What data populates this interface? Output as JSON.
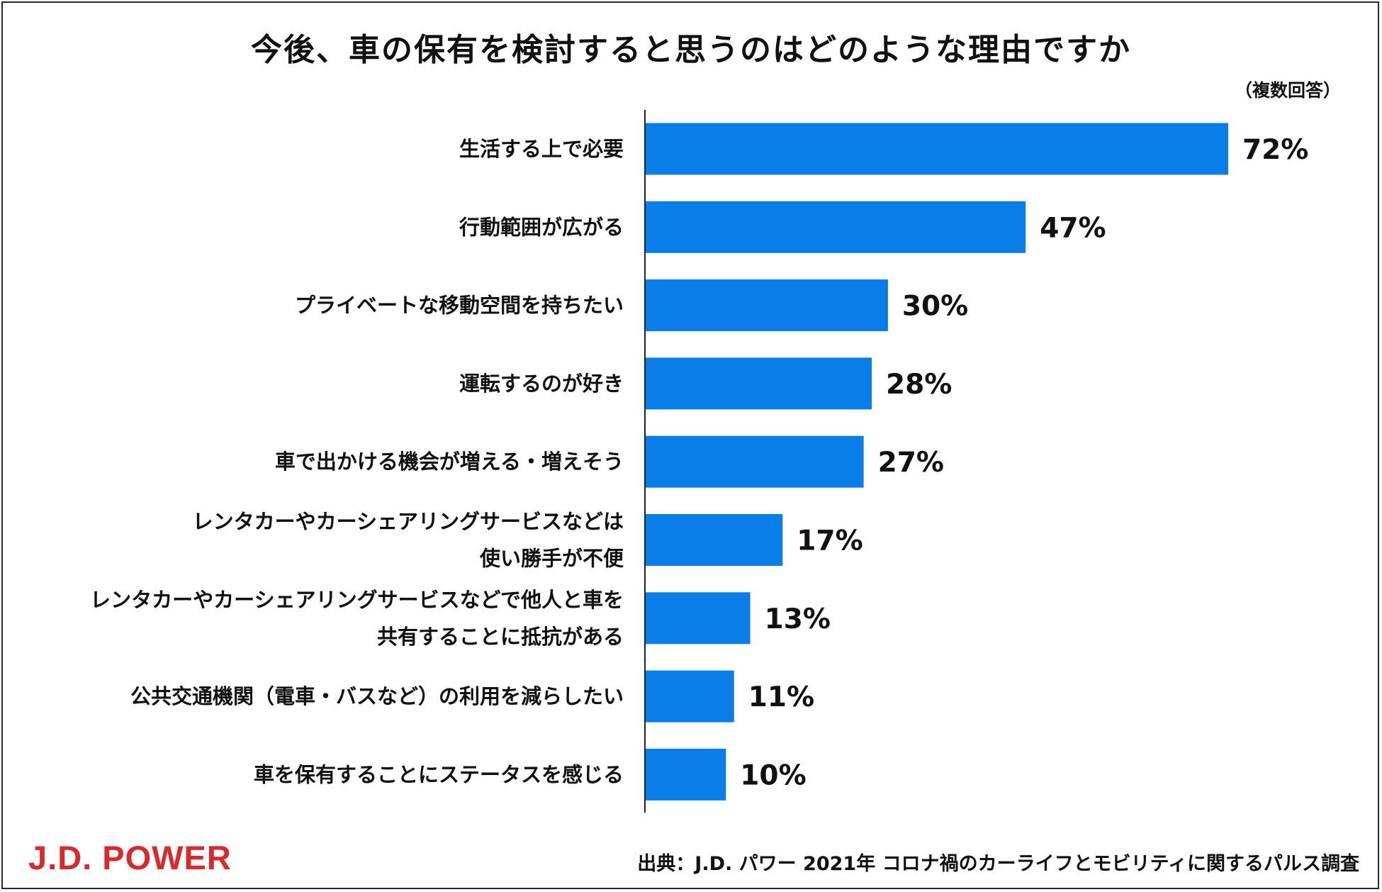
{
  "header": {
    "title": "今後、車の保有を検討すると思うのはどのような理由ですか",
    "note": "（複数回答）"
  },
  "footer": {
    "logo_text": "J.D. POWER",
    "source": "出典：J.D. パワー 2021年 コロナ禍のカーライフとモビリティに関するパルス調査"
  },
  "colors": {
    "bar": "#0a7ee8",
    "axis": "#222222",
    "logo": "#d9292b"
  },
  "chart_data": {
    "type": "bar",
    "orientation": "horizontal",
    "title": "今後、車の保有を検討すると思うのはどのような理由ですか",
    "xlabel": "",
    "ylabel": "",
    "xlim": [
      0,
      100
    ],
    "unit": "%",
    "grid": false,
    "legend": "none",
    "categories": [
      [
        "生活する上で必要"
      ],
      [
        "行動範囲が広がる"
      ],
      [
        "プライベートな移動空間を持ちたい"
      ],
      [
        "運転するのが好き"
      ],
      [
        "車で出かける機会が増える・増えそう"
      ],
      [
        "レンタカーやカーシェアリングサービスなどは",
        "使い勝手が不便"
      ],
      [
        "レンタカーやカーシェアリングサービスなどで他人と車を",
        "共有することに抵抗がある"
      ],
      [
        "公共交通機関（電車・バスなど）の利用を減らしたい"
      ],
      [
        "車を保有することにステータスを感じる"
      ]
    ],
    "values": [
      72,
      47,
      30,
      28,
      27,
      17,
      13,
      11,
      10
    ],
    "value_labels": [
      "72%",
      "47%",
      "30%",
      "28%",
      "27%",
      "17%",
      "13%",
      "11%",
      "10%"
    ]
  }
}
